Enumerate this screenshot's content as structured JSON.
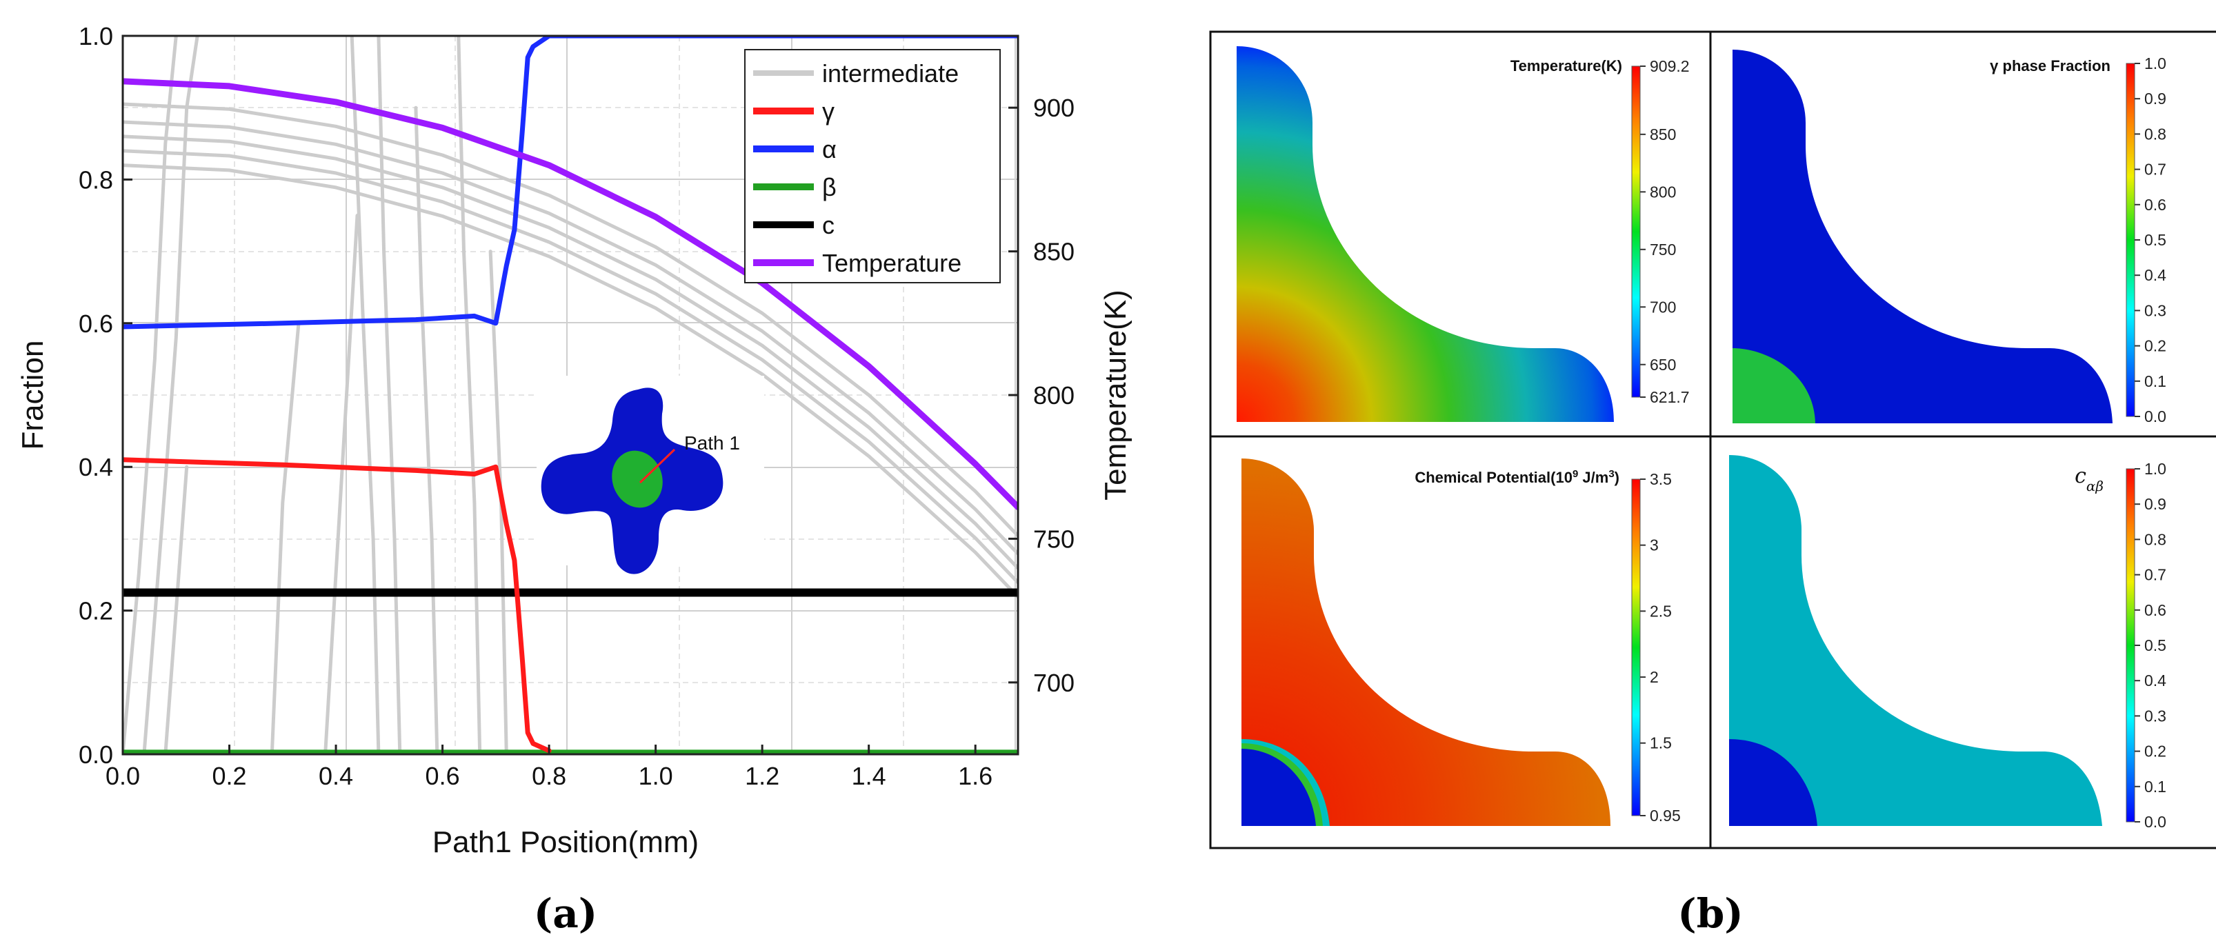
{
  "figure": {
    "panel_a_label": "(a)",
    "panel_b_label": "(b)"
  },
  "chart_data": [
    {
      "type": "line",
      "panel": "a",
      "xlabel": "Path1 Position(mm)",
      "ylabel": "Fraction",
      "y2label": "Temperature(K)",
      "xlim": [
        0.0,
        1.68
      ],
      "ylim": [
        0.0,
        1.0
      ],
      "y2lim": [
        675,
        925
      ],
      "grid": true,
      "legend_position": "top-right",
      "xticks": [
        "0.0",
        "0.2",
        "0.4",
        "0.6",
        "0.8",
        "1.0",
        "1.2",
        "1.4",
        "1.6"
      ],
      "yticks": [
        "0.0",
        "0.2",
        "0.4",
        "0.6",
        "0.8",
        "1.0"
      ],
      "y2ticks": [
        "700",
        "750",
        "800",
        "850",
        "900"
      ],
      "inset_label": "Path 1",
      "series": [
        {
          "name": "γ",
          "color": "#ff1a1a",
          "x": [
            0.0,
            0.3,
            0.55,
            0.66,
            0.7,
            0.72,
            0.735,
            0.75,
            0.76,
            0.77,
            0.8
          ],
          "y": [
            0.41,
            0.403,
            0.395,
            0.39,
            0.4,
            0.32,
            0.27,
            0.13,
            0.03,
            0.015,
            0.005
          ]
        },
        {
          "name": "α",
          "color": "#1a2cff",
          "x": [
            0.0,
            0.3,
            0.55,
            0.66,
            0.7,
            0.72,
            0.735,
            0.75,
            0.76,
            0.77,
            0.8,
            1.68
          ],
          "y": [
            0.595,
            0.6,
            0.605,
            0.61,
            0.6,
            0.68,
            0.73,
            0.87,
            0.97,
            0.985,
            1.0,
            1.0
          ]
        },
        {
          "name": "β",
          "color": "#22a022",
          "x": [
            0.0,
            1.68
          ],
          "y": [
            0.003,
            0.003
          ]
        },
        {
          "name": "c",
          "color": "#000000",
          "x": [
            0.0,
            1.68
          ],
          "y": [
            0.225,
            0.225
          ]
        },
        {
          "name": "Temperature",
          "color": "#9b1aff",
          "axis": "y2",
          "x": [
            0.0,
            0.2,
            0.4,
            0.6,
            0.8,
            1.0,
            1.2,
            1.4,
            1.6,
            1.68
          ],
          "y": [
            909.2,
            907.5,
            902,
            893,
            880,
            862,
            839,
            810,
            776,
            761
          ]
        },
        {
          "name": "intermediate",
          "color": "#cccccc",
          "x": [
            0.0,
            0.2,
            0.4,
            0.6,
            0.8,
            1.0,
            1.2,
            1.4,
            1.6,
            1.68
          ],
          "y": [
            0.905,
            0.898,
            0.874,
            0.834,
            0.778,
            0.706,
            0.614,
            0.5,
            0.366,
            0.304
          ]
        },
        {
          "name": "intermediate",
          "color": "#cccccc",
          "x": [
            0.0,
            0.2,
            0.4,
            0.6,
            0.8,
            1.0,
            1.2,
            1.4,
            1.6,
            1.68
          ],
          "y": [
            0.88,
            0.873,
            0.849,
            0.809,
            0.753,
            0.681,
            0.589,
            0.475,
            0.341,
            0.279
          ]
        },
        {
          "name": "intermediate",
          "color": "#cccccc",
          "x": [
            0.0,
            0.2,
            0.4,
            0.6,
            0.8,
            1.0,
            1.2,
            1.4,
            1.6,
            1.68
          ],
          "y": [
            0.86,
            0.853,
            0.829,
            0.789,
            0.733,
            0.661,
            0.569,
            0.455,
            0.321,
            0.259
          ]
        },
        {
          "name": "intermediate",
          "color": "#cccccc",
          "x": [
            0.0,
            0.2,
            0.4,
            0.6,
            0.8,
            1.0,
            1.2,
            1.4,
            1.6,
            1.68
          ],
          "y": [
            0.84,
            0.833,
            0.809,
            0.769,
            0.713,
            0.641,
            0.549,
            0.435,
            0.301,
            0.239
          ]
        },
        {
          "name": "intermediate",
          "color": "#cccccc",
          "x": [
            0.0,
            0.2,
            0.4,
            0.6,
            0.8,
            1.0,
            1.2,
            1.4,
            1.6,
            1.68
          ],
          "y": [
            0.82,
            0.813,
            0.789,
            0.749,
            0.693,
            0.621,
            0.529,
            0.415,
            0.281,
            0.219
          ]
        },
        {
          "name": "intermediate",
          "color": "#cccccc",
          "x": [
            0.0,
            0.03,
            0.06,
            0.08,
            0.1
          ],
          "y": [
            0.0,
            0.25,
            0.55,
            0.85,
            1.0
          ]
        },
        {
          "name": "intermediate",
          "color": "#cccccc",
          "x": [
            0.04,
            0.08,
            0.1,
            0.12,
            0.14
          ],
          "y": [
            0.0,
            0.38,
            0.58,
            0.9,
            1.0
          ]
        },
        {
          "name": "intermediate",
          "color": "#cccccc",
          "x": [
            0.08,
            0.1,
            0.12
          ],
          "y": [
            0.0,
            0.2,
            0.4
          ]
        },
        {
          "name": "intermediate",
          "color": "#cccccc",
          "x": [
            0.28,
            0.3,
            0.33
          ],
          "y": [
            0.0,
            0.35,
            0.6
          ]
        },
        {
          "name": "intermediate",
          "color": "#cccccc",
          "x": [
            0.38,
            0.4,
            0.42,
            0.44
          ],
          "y": [
            0.0,
            0.25,
            0.5,
            0.75
          ]
        },
        {
          "name": "intermediate",
          "color": "#cccccc",
          "x": [
            0.48,
            0.47,
            0.45,
            0.43
          ],
          "y": [
            0.0,
            0.3,
            0.62,
            1.0
          ]
        },
        {
          "name": "intermediate",
          "color": "#cccccc",
          "x": [
            0.52,
            0.51,
            0.49,
            0.48
          ],
          "y": [
            0.0,
            0.3,
            0.7,
            1.0
          ]
        },
        {
          "name": "intermediate",
          "color": "#cccccc",
          "x": [
            0.59,
            0.58,
            0.56,
            0.55
          ],
          "y": [
            0.0,
            0.3,
            0.65,
            0.9
          ]
        },
        {
          "name": "intermediate",
          "color": "#cccccc",
          "x": [
            0.67,
            0.66,
            0.64,
            0.63
          ],
          "y": [
            0.0,
            0.35,
            0.7,
            1.0
          ]
        },
        {
          "name": "intermediate",
          "color": "#cccccc",
          "x": [
            0.72,
            0.71,
            0.69
          ],
          "y": [
            0.0,
            0.35,
            0.7
          ]
        }
      ],
      "legend": [
        {
          "name": "intermediate",
          "color": "#cccccc"
        },
        {
          "name": "γ",
          "color": "#ff1a1a"
        },
        {
          "name": "α",
          "color": "#1a2cff"
        },
        {
          "name": "β",
          "color": "#22a022"
        },
        {
          "name": "c",
          "color": "#000000"
        },
        {
          "name": "Temperature",
          "color": "#9b1aff"
        }
      ]
    },
    {
      "type": "heatmap",
      "panel": "b",
      "plots": [
        {
          "title": "Temperature(K)",
          "colorbar_ticks": [
            "909.2",
            "850",
            "800",
            "750",
            "700",
            "650",
            "621.7"
          ],
          "range": [
            621.7,
            909.2
          ]
        },
        {
          "title": "γ phase Fraction",
          "colorbar_ticks": [
            "1.0",
            "0.9",
            "0.8",
            "0.7",
            "0.6",
            "0.5",
            "0.4",
            "0.3",
            "0.2",
            "0.1",
            "0.0"
          ],
          "range": [
            0.0,
            1.0
          ]
        },
        {
          "title": "Chemical Potential(10",
          "title_sup1": "9",
          "title_mid": " J/m",
          "title_sup2": "3",
          "title_end": ")",
          "colorbar_ticks": [
            "3.5",
            "3",
            "2.5",
            "2",
            "1.5",
            "0.95"
          ],
          "range": [
            0.95,
            3.5
          ]
        },
        {
          "title": "c",
          "title_sub": "αβ",
          "colorbar_ticks": [
            "1.0",
            "0.9",
            "0.8",
            "0.7",
            "0.6",
            "0.5",
            "0.4",
            "0.3",
            "0.2",
            "0.1",
            "0.0"
          ],
          "range": [
            0.0,
            1.0
          ]
        }
      ]
    }
  ]
}
